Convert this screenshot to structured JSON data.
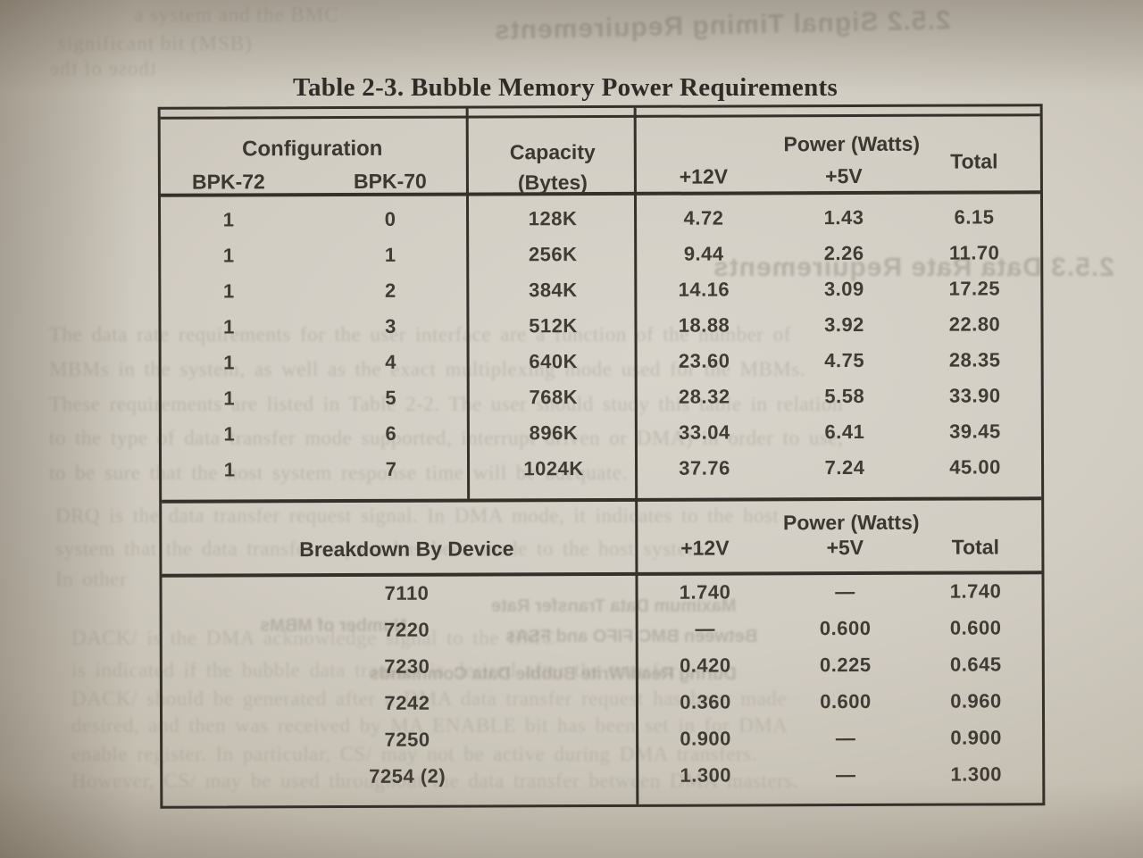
{
  "title": "Table 2-3. Bubble Memory Power Requirements",
  "table1": {
    "col_configuration": "Configuration",
    "col_bpk72": "BPK-72",
    "col_bpk70": "BPK-70",
    "col_capacity_line1": "Capacity",
    "col_capacity_line2": "(Bytes)",
    "col_power": "Power (Watts)",
    "col_12v": "+12V",
    "col_5v": "+5V",
    "col_total": "Total",
    "rows": [
      {
        "bpk72": "1",
        "bpk70": "0",
        "capacity": "128K",
        "v12": "4.72",
        "v5": "1.43",
        "total": "6.15"
      },
      {
        "bpk72": "1",
        "bpk70": "1",
        "capacity": "256K",
        "v12": "9.44",
        "v5": "2.26",
        "total": "11.70"
      },
      {
        "bpk72": "1",
        "bpk70": "2",
        "capacity": "384K",
        "v12": "14.16",
        "v5": "3.09",
        "total": "17.25"
      },
      {
        "bpk72": "1",
        "bpk70": "3",
        "capacity": "512K",
        "v12": "18.88",
        "v5": "3.92",
        "total": "22.80"
      },
      {
        "bpk72": "1",
        "bpk70": "4",
        "capacity": "640K",
        "v12": "23.60",
        "v5": "4.75",
        "total": "28.35"
      },
      {
        "bpk72": "1",
        "bpk70": "5",
        "capacity": "768K",
        "v12": "28.32",
        "v5": "5.58",
        "total": "33.90"
      },
      {
        "bpk72": "1",
        "bpk70": "6",
        "capacity": "896K",
        "v12": "33.04",
        "v5": "6.41",
        "total": "39.45"
      },
      {
        "bpk72": "1",
        "bpk70": "7",
        "capacity": "1024K",
        "v12": "37.76",
        "v5": "7.24",
        "total": "45.00"
      }
    ]
  },
  "table2": {
    "col_device": "Breakdown By Device",
    "col_power": "Power (Watts)",
    "col_12v": "+12V",
    "col_5v": "+5V",
    "col_total": "Total",
    "rows": [
      {
        "device": "7110",
        "v12": "1.740",
        "v5": "—",
        "total": "1.740"
      },
      {
        "device": "7220",
        "v12": "—",
        "v5": "0.600",
        "total": "0.600"
      },
      {
        "device": "7230",
        "v12": "0.420",
        "v5": "0.225",
        "total": "0.645"
      },
      {
        "device": "7242",
        "v12": "0.360",
        "v5": "0.600",
        "total": "0.960"
      },
      {
        "device": "7250",
        "v12": "0.900",
        "v5": "—",
        "total": "0.900"
      },
      {
        "device": "7254 (2)",
        "v12": "1.300",
        "v5": "—",
        "total": "1.300"
      }
    ]
  },
  "ghost_bleedthrough": {
    "heading_top": "2.5.2 Signal Timing Requirements",
    "heading_mid": "2.5.3 Data Rate Requirements",
    "fragments_top": [
      "a system and the BMC",
      "significant bit (MSB)",
      "those of the"
    ],
    "paragraph_data_rate": [
      "The data rate requirements for the user interface are a function of the number of",
      "MBMs in the system, as well as the exact multiplexing mode used for the MBMs.",
      "These requirements are listed in Table 2-2. The user should study this table in relation",
      "to the type of data transfer mode supported, interrupt driven or DMA) in order to use,",
      "to be sure that the host system response time will be adequate."
    ],
    "paragraph_drq": [
      "DRQ is the data transfer request signal. In DMA mode, it indicates to the host",
      "system that the data transfer request has been made to the host system",
      "In other"
    ],
    "table_captions": [
      "Maximum Data Transfer Rate",
      "Number of MBMs",
      "Between BMC FIFO and FSAs",
      "During Read/Write Bubble Data Commands"
    ],
    "paragraph_dack": [
      "DACK/ is the DMA acknowledge signal to the BMC",
      "is indicated if the bubble data transfer is desired after the transfer",
      "DACK/ should be generated after a DMA data transfer request has been made",
      "desired, and then was received by MA ENABLE bit has been set in for DMA",
      "enable register. In particular, CS/ may not be active during DMA transfers.",
      "However, CS/ may be used throughout the data transfer between DMA masters."
    ]
  },
  "colors": {
    "paper_light": "#d8d4cb",
    "paper_dark": "#a89f90",
    "ink": "#3b3731",
    "table_line": "#34312b",
    "ghost_ink": "#6e675b"
  }
}
